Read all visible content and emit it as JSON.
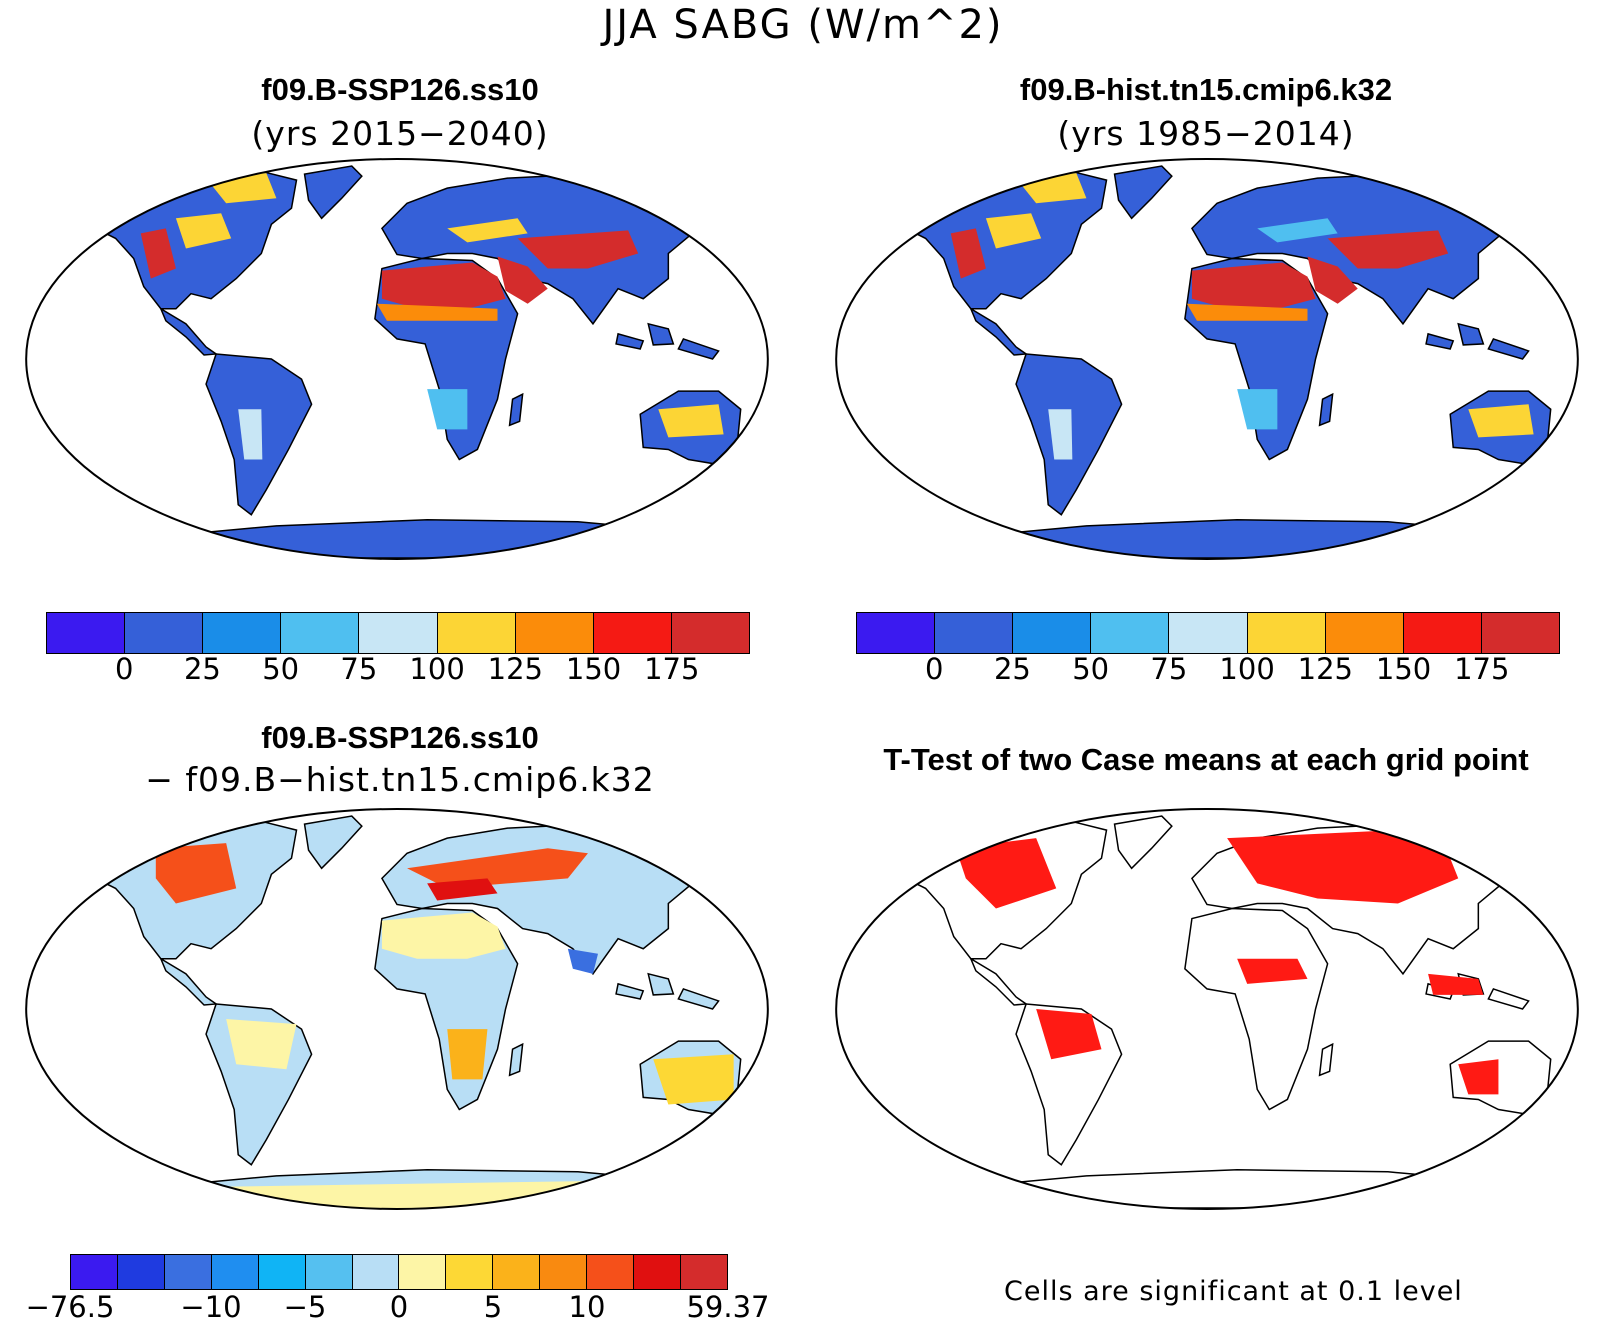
{
  "title": "JJA SABG (W/m^2)",
  "panels": {
    "top_left": {
      "title": "f09.B-SSP126.ss10",
      "subtitle": "(yrs 2015−2040)"
    },
    "top_right": {
      "title": "f09.B-hist.tn15.cmip6.k32",
      "subtitle": "(yrs 1985−2014)"
    },
    "bottom_left": {
      "title": "f09.B-SSP126.ss10",
      "subtitle": "− f09.B−hist.tn15.cmip6.k32"
    },
    "bottom_right": {
      "title": "T-Test of two Case means at each grid point",
      "note": "Cells are significant at 0.1 level"
    }
  },
  "colorbars": {
    "absolute": {
      "colors": [
        "#3b1af0",
        "#3560d8",
        "#1a8de8",
        "#4fbff0",
        "#c8e6f5",
        "#fcd535",
        "#fb8c0a",
        "#f51a14",
        "#d42c2c"
      ],
      "ticks": [
        "0",
        "25",
        "50",
        "75",
        "100",
        "125",
        "150",
        "175"
      ]
    },
    "difference": {
      "colors": [
        "#3b1af0",
        "#1f3be0",
        "#3a6fe0",
        "#1f8ef0",
        "#10b4f5",
        "#55c0f0",
        "#b8def5",
        "#fdf5a6",
        "#fdd835",
        "#fbb21a",
        "#f98a10",
        "#f5501a",
        "#e01010",
        "#d42c2c"
      ],
      "ticks": [
        "−76.5",
        "−10",
        "−5",
        "0",
        "5",
        "10",
        "59.37"
      ],
      "tick_slots": [
        0,
        2,
        3,
        4,
        5,
        6,
        7
      ]
    }
  },
  "map_colors": {
    "ocean": "#ffffff",
    "coast": "#000000",
    "significant": "#ff1a14"
  }
}
